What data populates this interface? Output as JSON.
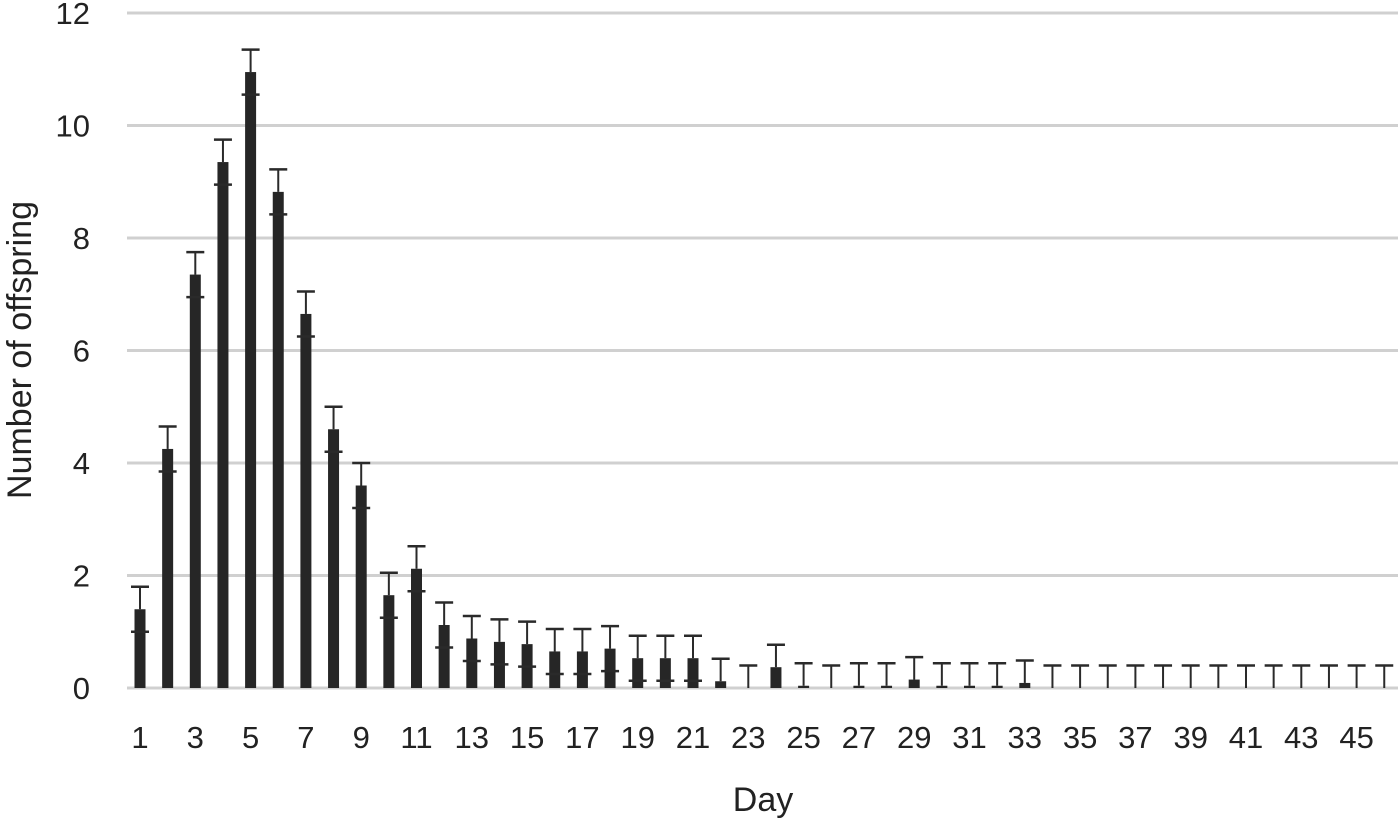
{
  "chart_data": {
    "type": "bar",
    "xlabel": "Day",
    "ylabel": "Number of offspring",
    "ylim": [
      0,
      12
    ],
    "yticks": [
      0,
      2,
      4,
      6,
      8,
      10,
      12
    ],
    "grid": true,
    "legend": "none",
    "bar_color": "#262626",
    "grid_color": "#d0d0d0",
    "categories": [
      "1",
      "2",
      "3",
      "4",
      "5",
      "6",
      "7",
      "8",
      "9",
      "10",
      "11",
      "12",
      "13",
      "14",
      "15",
      "16",
      "17",
      "18",
      "19",
      "20",
      "21",
      "22",
      "23",
      "24",
      "25",
      "26",
      "27",
      "28",
      "29",
      "30",
      "31",
      "32",
      "33",
      "34",
      "35",
      "36",
      "37",
      "38",
      "39",
      "40",
      "41",
      "42",
      "43",
      "44",
      "45",
      "46"
    ],
    "xtick_labels": [
      "1",
      "",
      "3",
      "",
      "5",
      "",
      "7",
      "",
      "9",
      "",
      "11",
      "",
      "13",
      "",
      "15",
      "",
      "17",
      "",
      "19",
      "",
      "21",
      "",
      "23",
      "",
      "25",
      "",
      "27",
      "",
      "29",
      "",
      "31",
      "",
      "33",
      "",
      "35",
      "",
      "37",
      "",
      "39",
      "",
      "41",
      "",
      "43",
      "",
      "45",
      ""
    ],
    "values": [
      1.4,
      4.25,
      7.35,
      9.35,
      10.95,
      8.82,
      6.65,
      4.6,
      3.6,
      1.65,
      2.12,
      1.12,
      0.88,
      0.82,
      0.78,
      0.65,
      0.65,
      0.7,
      0.53,
      0.53,
      0.53,
      0.12,
      0,
      0.37,
      0.04,
      0,
      0.04,
      0.04,
      0.15,
      0.04,
      0.04,
      0.04,
      0.09,
      0,
      0,
      0,
      0,
      0,
      0,
      0,
      0,
      0,
      0,
      0,
      0,
      0
    ],
    "error": [
      0.4,
      0.4,
      0.4,
      0.4,
      0.4,
      0.4,
      0.4,
      0.4,
      0.4,
      0.4,
      0.4,
      0.4,
      0.4,
      0.4,
      0.4,
      0.4,
      0.4,
      0.4,
      0.4,
      0.4,
      0.4,
      0.4,
      0.4,
      0.4,
      0.4,
      0.4,
      0.4,
      0.4,
      0.4,
      0.4,
      0.4,
      0.4,
      0.4,
      0.4,
      0.4,
      0.4,
      0.4,
      0.4,
      0.4,
      0.4,
      0.4,
      0.4,
      0.4,
      0.4,
      0.4,
      0.4
    ]
  }
}
